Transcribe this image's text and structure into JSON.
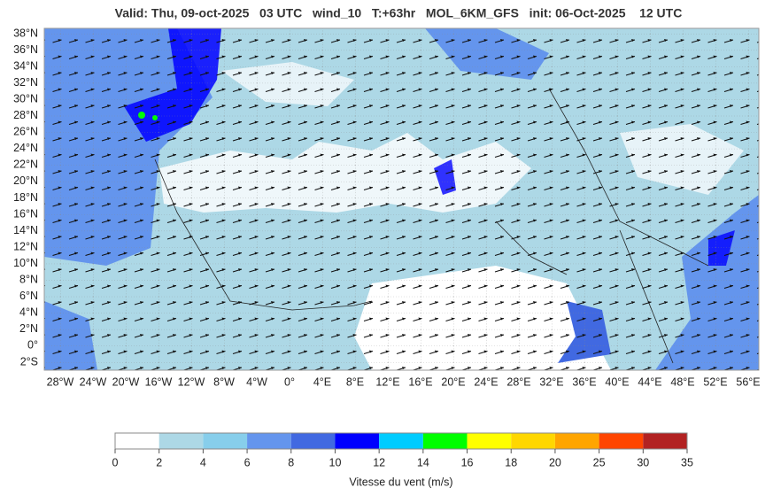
{
  "header": {
    "title": "Valid: Thu, 09-oct-2025   03 UTC   wind_10   T:+63hr   MOL_6KM_GFS   init: 06-Oct-2025    12 UTC"
  },
  "map": {
    "lat_labels": [
      "38°N",
      "36°N",
      "34°N",
      "32°N",
      "30°N",
      "28°N",
      "26°N",
      "24°N",
      "22°N",
      "20°N",
      "18°N",
      "16°N",
      "14°N",
      "12°N",
      "10°N",
      "8°N",
      "6°N",
      "4°N",
      "2°N",
      "0°",
      "2°S"
    ],
    "lon_labels": [
      "28°W",
      "24°W",
      "20°W",
      "16°W",
      "12°W",
      "8°W",
      "4°W",
      "0°",
      "4°E",
      "8°E",
      "12°E",
      "16°E",
      "20°E",
      "24°E",
      "28°E",
      "32°E",
      "36°E",
      "40°E",
      "44°E",
      "48°E",
      "52°E",
      "56°E"
    ]
  },
  "colorbar": {
    "ticks": [
      "0",
      "2",
      "4",
      "6",
      "8",
      "10",
      "12",
      "14",
      "16",
      "18",
      "20",
      "25",
      "30",
      "35"
    ],
    "colors": [
      "#ffffff",
      "#add8e6",
      "#87ceeb",
      "#6495ed",
      "#4169e1",
      "#0000ff",
      "#00ccff",
      "#00ff00",
      "#ffff00",
      "#ffd700",
      "#ffa500",
      "#ff4500",
      "#b22222"
    ],
    "label": "Vitesse du vent (m/s)"
  }
}
